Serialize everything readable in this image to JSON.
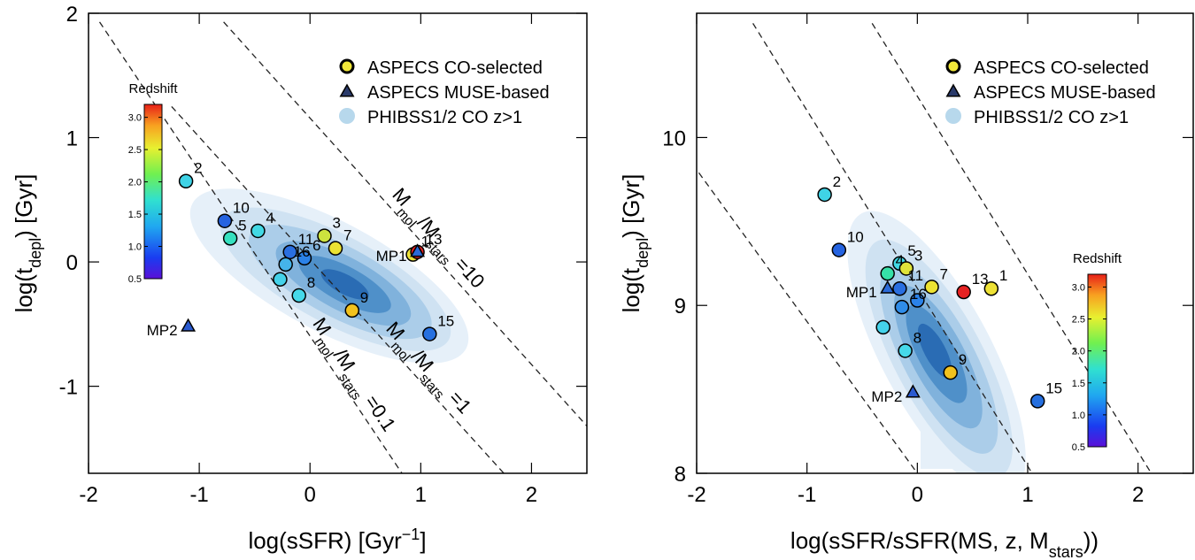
{
  "chart_data": [
    {
      "type": "scatter",
      "x_label": [
        "log(sSFR)  [Gyr",
        "−1",
        "]"
      ],
      "y_label": [
        "log(t",
        "depl",
        ")  [Gyr]"
      ],
      "xlim": [
        -2,
        2.5
      ],
      "ylim": [
        -1.7,
        2
      ],
      "xticks": [
        -2,
        -1,
        0,
        1,
        2
      ],
      "yticks": [
        -1,
        0,
        1,
        2
      ],
      "legend_position": "upper right",
      "colorbar": {
        "title": "Redshift",
        "range": [
          0.5,
          3.2
        ],
        "ticks": [
          0.5,
          {
            "value": 1,
            "label": "1.0"
          },
          1.5,
          {
            "value": 2,
            "label": "2.0"
          },
          2.5,
          {
            "value": 3,
            "label": "3.0"
          }
        ]
      },
      "lines": [
        {
          "label": [
            "M",
            "mol",
            "/M",
            "stars",
            " =0.1"
          ],
          "x": [
            -1.9,
            0.83
          ],
          "y": [
            1.93,
            -1.7
          ]
        },
        {
          "label": [
            "M",
            "mol",
            "/M",
            "stars",
            " =1"
          ],
          "x": [
            -1.25,
            1.75
          ],
          "y": [
            1.25,
            -1.7
          ]
        },
        {
          "label": [
            "M",
            "mol",
            "/M",
            "stars",
            " =10"
          ],
          "x": [
            -0.78,
            2.5
          ],
          "y": [
            1.93,
            -1.32
          ]
        }
      ],
      "series": [
        {
          "name": "ASPECS CO-selected",
          "marker": "circle",
          "legend_color": "#f2e83a",
          "x": [
            -1.12,
            -0.77,
            -0.72,
            -0.47,
            0.13,
            0.23,
            -0.18,
            -0.05,
            -0.22,
            -0.27,
            -0.1,
            0.38,
            1.08,
            0.93,
            0.97
          ],
          "y": [
            0.65,
            0.33,
            0.19,
            0.25,
            0.21,
            0.11,
            0.08,
            0.03,
            -0.02,
            -0.14,
            -0.27,
            -0.39,
            -0.58,
            0.06,
            0.08
          ],
          "point_labels": [
            "2",
            "10",
            "5",
            "4",
            "3",
            "7",
            "11",
            "6",
            "16",
            null,
            "8",
            "9",
            "15",
            "1",
            "13"
          ],
          "colors": [
            "#3fd3e6",
            "#2563e0",
            "#36e0bf",
            "#42d8e4",
            "#cde33e",
            "#ece232",
            "#2a6fe0",
            "#2b82e8",
            "#45b4ea",
            "#44d2ea",
            "#46d9ea",
            "#f2c21f",
            "#2670e0",
            "#eee236",
            "#e62222"
          ]
        },
        {
          "name": "ASPECS MUSE-based",
          "marker": "triangle",
          "legend_color": "#2a3a6a",
          "x": [
            0.97,
            -1.1
          ],
          "y": [
            0.08,
            -0.52
          ],
          "point_labels": [
            "MP1",
            "MP2"
          ],
          "colors": [
            "#2a6ad8",
            "#2a5ad0"
          ]
        },
        {
          "name": "PHIBSS1/2 CO z>1",
          "marker": "density",
          "legend_color": "#b7d8ec"
        }
      ]
    },
    {
      "type": "scatter",
      "x_label": [
        "log(sSFR/sSFR(MS, z, M",
        "stars",
        "))"
      ],
      "y_label": [
        "log(t",
        "depl",
        ")  [Gyr]"
      ],
      "xlim": [
        -2,
        2.5
      ],
      "ylim": [
        8,
        10.74
      ],
      "xticks": [
        -2,
        -1,
        0,
        1,
        2
      ],
      "yticks": [
        8,
        9,
        10
      ],
      "legend_position": "upper right",
      "colorbar": {
        "title": "Redshift",
        "range": [
          0.5,
          3.2
        ],
        "ticks": [
          0.5,
          {
            "value": 1,
            "label": "1.0"
          },
          1.5,
          {
            "value": 2,
            "label": "2.0"
          },
          2.5,
          {
            "value": 3,
            "label": "3.0"
          }
        ]
      },
      "lines": [
        {
          "x": [
            -1.98,
            0
          ],
          "y": [
            9.79,
            8
          ]
        },
        {
          "x": [
            -1.49,
            1.04
          ],
          "y": [
            10.68,
            8
          ]
        },
        {
          "x": [
            -0.41,
            2.12
          ],
          "y": [
            10.68,
            8
          ]
        }
      ],
      "series": [
        {
          "name": "ASPECS CO-selected",
          "marker": "circle",
          "legend_color": "#f2e83a",
          "x": [
            -0.84,
            -0.71,
            -0.16,
            -0.1,
            -0.27,
            0.13,
            0.42,
            0.67,
            -0.16,
            0,
            -0.14,
            -0.31,
            -0.11,
            0.3,
            1.09
          ],
          "y": [
            9.66,
            9.33,
            9.25,
            9.22,
            9.19,
            9.11,
            9.08,
            9.1,
            9.1,
            9.03,
            8.99,
            8.87,
            8.73,
            8.6,
            8.43
          ],
          "point_labels": [
            "2",
            "10",
            "5",
            "3",
            "4",
            "7",
            "13",
            "1",
            "11",
            null,
            "16",
            null,
            "8",
            "9",
            "15"
          ],
          "colors": [
            "#3fd3e6",
            "#2563e0",
            "#42d8e4",
            "#dfe33a",
            "#36e0a8",
            "#ece232",
            "#e62222",
            "#eee236",
            "#2a6fe0",
            "#2b82e8",
            "#2f8ce8",
            "#44d2ea",
            "#46d9ea",
            "#f2c21f",
            "#2670e0"
          ]
        },
        {
          "name": "ASPECS MUSE-based",
          "marker": "triangle",
          "legend_color": "#2a3a6a",
          "x": [
            -0.27,
            -0.04
          ],
          "y": [
            9.1,
            8.48
          ],
          "point_labels": [
            "MP1",
            "MP2"
          ],
          "colors": [
            "#2a6ad8",
            "#2a5ad0"
          ]
        },
        {
          "name": "PHIBSS1/2 CO z>1",
          "marker": "density",
          "legend_color": "#b7d8ec"
        }
      ]
    }
  ]
}
